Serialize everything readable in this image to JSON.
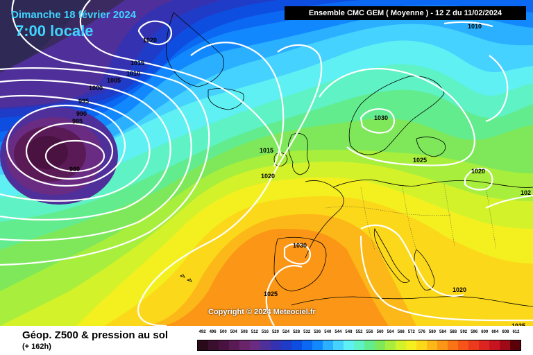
{
  "header": {
    "date": "Dimanche 18 février 2024",
    "time": "7:00 locale",
    "model_run": "Ensemble CMC GEM  ( Moyenne )  -  12 Z du 11/02/2024"
  },
  "copyright": "Copyright © 2024 Meteociel.fr",
  "legend": {
    "parameter": "Géop. Z500 & pression au sol",
    "forecast_hour": "(+ 162h)",
    "scale": [
      {
        "label": "492",
        "color": "#2a0a1a"
      },
      {
        "label": "496",
        "color": "#3a0f2e"
      },
      {
        "label": "500",
        "color": "#4a1240"
      },
      {
        "label": "504",
        "color": "#5a1a55"
      },
      {
        "label": "508",
        "color": "#6a246a"
      },
      {
        "label": "512",
        "color": "#6a2c82"
      },
      {
        "label": "516",
        "color": "#4f2f9a"
      },
      {
        "label": "520",
        "color": "#3432b0"
      },
      {
        "label": "524",
        "color": "#1f3cc8"
      },
      {
        "label": "528",
        "color": "#0d4ee0"
      },
      {
        "label": "532",
        "color": "#0a68f2"
      },
      {
        "label": "536",
        "color": "#1288ff"
      },
      {
        "label": "540",
        "color": "#2ab0ff"
      },
      {
        "label": "544",
        "color": "#46d2ff"
      },
      {
        "label": "548",
        "color": "#5ef0f2"
      },
      {
        "label": "552",
        "color": "#5ef2c4"
      },
      {
        "label": "556",
        "color": "#62ec8e"
      },
      {
        "label": "560",
        "color": "#7ee85a"
      },
      {
        "label": "564",
        "color": "#a8ee3c"
      },
      {
        "label": "568",
        "color": "#d4f22a"
      },
      {
        "label": "572",
        "color": "#f4f020"
      },
      {
        "label": "576",
        "color": "#fcd81a"
      },
      {
        "label": "580",
        "color": "#fcb818"
      },
      {
        "label": "584",
        "color": "#fc9616"
      },
      {
        "label": "588",
        "color": "#fa7416"
      },
      {
        "label": "592",
        "color": "#f65418"
      },
      {
        "label": "596",
        "color": "#ec3a1c"
      },
      {
        "label": "600",
        "color": "#de2420"
      },
      {
        "label": "604",
        "color": "#c81420"
      },
      {
        "label": "608",
        "color": "#a00a16"
      },
      {
        "label": "612",
        "color": "#5a0008"
      }
    ]
  },
  "isobars": [
    {
      "label": "1020",
      "id": "iso-1020-a"
    },
    {
      "label": "1015",
      "id": "iso-1015-a"
    },
    {
      "label": "1010",
      "id": "iso-1010-a"
    },
    {
      "label": "1005",
      "id": "iso-1005"
    },
    {
      "label": "1000",
      "id": "iso-1000"
    },
    {
      "label": "995",
      "id": "iso-995"
    },
    {
      "label": "990",
      "id": "iso-990"
    },
    {
      "label": "985",
      "id": "iso-985"
    },
    {
      "label": "980",
      "id": "iso-980"
    },
    {
      "label": "1015",
      "id": "iso-1015-b"
    },
    {
      "label": "1020",
      "id": "iso-1020-b"
    },
    {
      "label": "1030",
      "id": "iso-1030-a"
    },
    {
      "label": "1025",
      "id": "iso-1025-a"
    },
    {
      "label": "1020",
      "id": "iso-1020-c"
    },
    {
      "label": "1030",
      "id": "iso-1030-b"
    },
    {
      "label": "1025",
      "id": "iso-1025-b"
    },
    {
      "label": "1020",
      "id": "iso-1020-d"
    },
    {
      "label": "1025",
      "id": "iso-1025-c"
    },
    {
      "label": "1010",
      "id": "iso-1010-b"
    },
    {
      "label": "102",
      "id": "iso-102-edge"
    }
  ]
}
